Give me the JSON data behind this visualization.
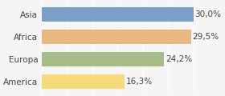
{
  "categories": [
    "Asia",
    "Africa",
    "Europa",
    "America"
  ],
  "values": [
    30.0,
    29.5,
    24.2,
    16.3
  ],
  "labels": [
    "30,0%",
    "29,5%",
    "24,2%",
    "16,3%"
  ],
  "bar_colors": [
    "#7b9fc7",
    "#e8b882",
    "#a8bc8a",
    "#f5d97a"
  ],
  "background_color": "#f5f5f5",
  "xlim": [
    0,
    35
  ],
  "label_fontsize": 7.5,
  "tick_fontsize": 7.5
}
